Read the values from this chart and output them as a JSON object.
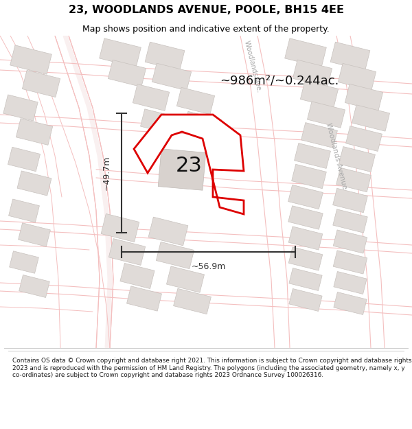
{
  "title": "23, WOODLANDS AVENUE, POOLE, BH15 4EE",
  "subtitle": "Map shows position and indicative extent of the property.",
  "footer": "Contains OS data © Crown copyright and database right 2021. This information is subject to Crown copyright and database rights 2023 and is reproduced with the permission of HM Land Registry. The polygons (including the associated geometry, namely x, y co-ordinates) are subject to Crown copyright and database rights 2023 Ordnance Survey 100026316.",
  "area_label": "~986m²/~0.244ac.",
  "number_label": "23",
  "width_label": "~56.9m",
  "height_label": "~49.7m",
  "bg_color": "#ffffff",
  "map_bg": "#ffffff",
  "road_color": "#f4bfbf",
  "road_lw": 0.7,
  "building_color": "#e0dbd8",
  "building_edge": "#c8c2be",
  "plot_fill": "#ffffff",
  "plot_edge": "#dd0000",
  "plot_edge_width": 2.0,
  "dim_line_color": "#333333",
  "text_color": "#000000",
  "street_color": "#aaaaaa",
  "footer_border": "#cccccc"
}
